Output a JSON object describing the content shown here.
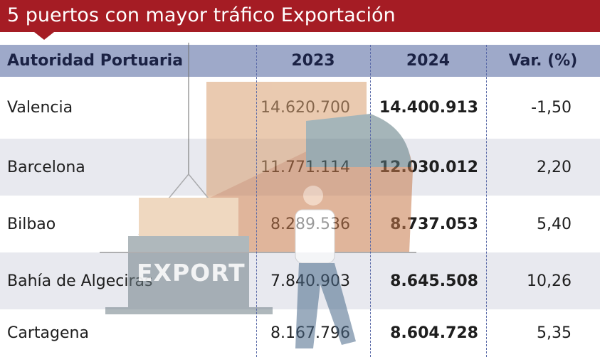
{
  "header": {
    "title": "5 puertos con mayor tráfico Exportación"
  },
  "table": {
    "columns": [
      "Autoridad Portuaria",
      "2023",
      "2024",
      "Var. (%)"
    ],
    "rows": [
      [
        "Valencia",
        "14.620.700",
        "14.400.913",
        "-1,50"
      ],
      [
        "Barcelona",
        "11.771.114",
        "12.030.012",
        "2,20"
      ],
      [
        "Bilbao",
        "8.289.536",
        "8.737.053",
        "5,40"
      ],
      [
        "Bahía de Algeciras",
        "7.840.903",
        "8.645.508",
        "10,26"
      ],
      [
        "Cartagena",
        "8.167.796",
        "8.604.728",
        "5,35"
      ]
    ]
  },
  "illustration_label": "EXPORT"
}
